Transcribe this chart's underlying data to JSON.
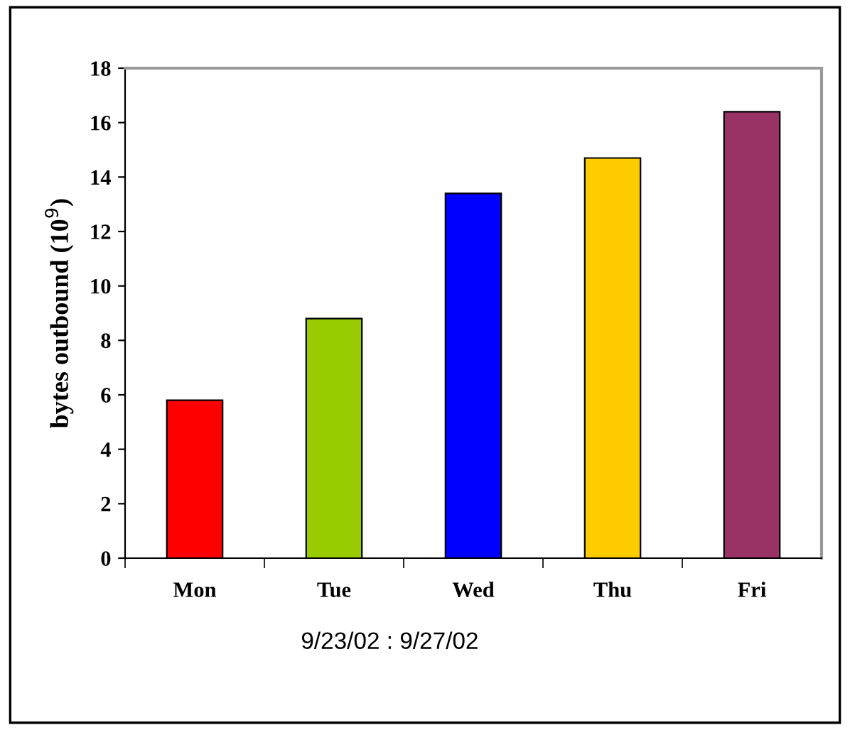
{
  "chart_data": {
    "type": "bar",
    "categories": [
      "Mon",
      "Tue",
      "Wed",
      "Thu",
      "Fri"
    ],
    "values": [
      5.8,
      8.8,
      13.4,
      14.7,
      16.4
    ],
    "colors": [
      "#ff0000",
      "#99cc00",
      "#0000ff",
      "#ffcc00",
      "#993366"
    ],
    "ylabel": "bytes outbound (10$^{9}$)",
    "xlabel": "9/23/02 : 9/27/02",
    "ylim": [
      0,
      18
    ],
    "yticks": [
      0,
      2,
      4,
      6,
      8,
      10,
      12,
      14,
      16,
      18
    ],
    "grid": false
  }
}
